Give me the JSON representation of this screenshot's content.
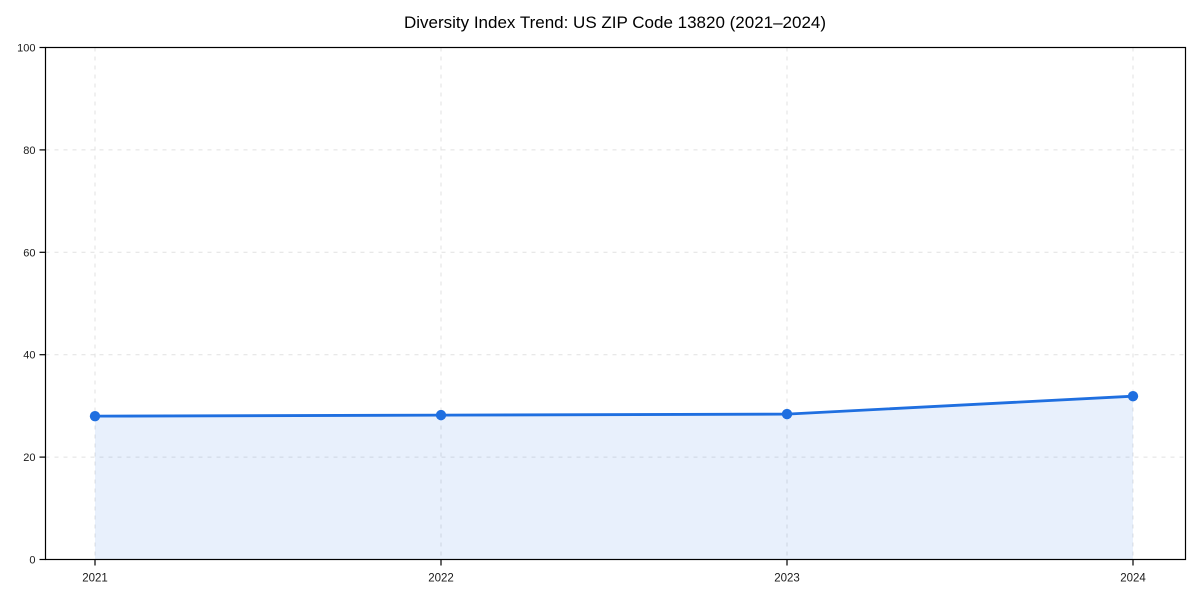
{
  "figure": {
    "background": "#ffffff"
  },
  "chart_data": {
    "type": "line",
    "title": "Diversity Index Trend: US ZIP Code 13820 (2021–2024)",
    "categories": [
      "2021",
      "2022",
      "2023",
      "2024"
    ],
    "series": [
      {
        "name": "Diversity Index",
        "values": [
          28.0,
          28.2,
          28.4,
          31.9
        ]
      }
    ],
    "xlabel": "",
    "ylabel": "",
    "ylim": [
      0,
      100
    ],
    "yticks": [
      0,
      20,
      40,
      60,
      80,
      100
    ],
    "grid": true,
    "grid_style": "dashed",
    "legend": "none",
    "area_fill": true,
    "marker": "circle",
    "colors": {
      "line": "#1f6fe0",
      "marker": "#1f6fe0",
      "area": "rgba(31,111,224,0.10)",
      "grid": "#e1e1e1",
      "axis": "#000000",
      "tick_text": "#1a1a1a",
      "title_text": "#000000"
    }
  }
}
